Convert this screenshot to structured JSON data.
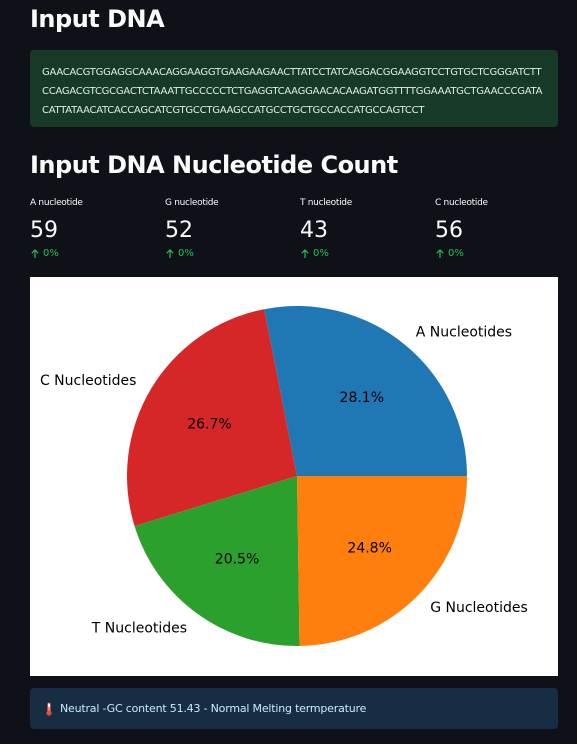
{
  "header": {
    "title": "Input DNA"
  },
  "dna": {
    "sequence": "GAACACGTGGAGGCAAACAGGAAGGTGAAGAAGAACTTATCCTATCAGGACGGAAGGTCCTGTGCTCGGGATCTTCCAGACGTCGCGACTCTAAATTGCCCCCTCTGAGGTCAAGGAACACAAGATGGTTTTGGAAATGCTGAACCCGATACATTATAACATCACCAGCATCGTGCCTGAAGCCATGCCTGCTGCCACCATGCCAGTCCT"
  },
  "count_section": {
    "title": "Input DNA Nucleotide Count",
    "metrics": [
      {
        "label": "A nucleotide",
        "value": "59",
        "delta": "0%"
      },
      {
        "label": "G nucleotide",
        "value": "52",
        "delta": "0%"
      },
      {
        "label": "T nucleotide",
        "value": "43",
        "delta": "0%"
      },
      {
        "label": "C nucleotide",
        "value": "56",
        "delta": "0%"
      }
    ],
    "delta_color": "#21c354",
    "delta_icon": "arrow-up-icon"
  },
  "chart_data": {
    "type": "pie",
    "title": "",
    "labels": [
      "A Nucleotides",
      "C Nucleotides",
      "T Nucleotides",
      "G Nucleotides"
    ],
    "values": [
      59,
      56,
      43,
      52
    ],
    "percent_labels": [
      "28.1%",
      "26.7%",
      "20.5%",
      "24.8%"
    ],
    "colors": [
      "#1f77b4",
      "#d62728",
      "#2ca02c",
      "#ff7f0e"
    ],
    "start_angle_deg": 0,
    "direction": "counterclockwise"
  },
  "info": {
    "icon": "thermometer-icon",
    "text": "Neutral -GC content 51.43 - Normal Melting termperature"
  }
}
